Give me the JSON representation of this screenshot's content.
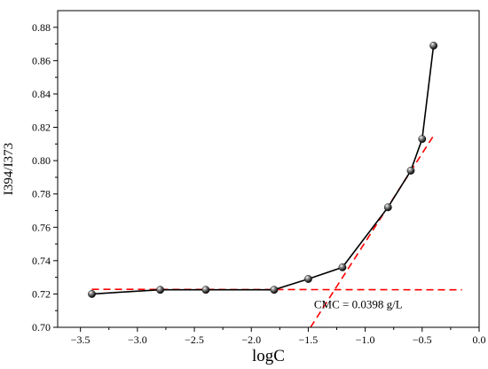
{
  "chart_data": {
    "type": "line",
    "xlabel": "logC",
    "ylabel": "I394/I373",
    "xlim": [
      -3.7,
      0.0
    ],
    "ylim": [
      0.7,
      0.89
    ],
    "xticks": [
      -3.5,
      -3.0,
      -2.5,
      -2.0,
      -1.5,
      -1.0,
      -0.5,
      0.0
    ],
    "xtick_labels": [
      "−3.5",
      "−3.0",
      "−2.5",
      "−2.0",
      "−1.5",
      "−1.0",
      "−0.5",
      "0.0"
    ],
    "yticks": [
      0.7,
      0.72,
      0.74,
      0.76,
      0.78,
      0.8,
      0.82,
      0.84,
      0.86,
      0.88
    ],
    "ytick_labels": [
      "0.70",
      "0.72",
      "0.74",
      "0.76",
      "0.78",
      "0.80",
      "0.82",
      "0.84",
      "0.86",
      "0.88"
    ],
    "grid": false,
    "series": [
      {
        "x": [
          -3.4,
          -2.8,
          -2.4,
          -1.8,
          -1.5,
          -1.2,
          -0.8,
          -0.6,
          -0.5,
          -0.4
        ],
        "y": [
          0.72,
          0.7225,
          0.7225,
          0.7225,
          0.729,
          0.736,
          0.772,
          0.794,
          0.813,
          0.869
        ],
        "color": "#000000",
        "marker": "sphere"
      }
    ],
    "fit_lines": [
      {
        "x": [
          -3.4,
          -0.15
        ],
        "y": [
          0.7228,
          0.7225
        ],
        "color": "#ff0000",
        "style": "dashed"
      },
      {
        "x": [
          -1.48,
          -0.4
        ],
        "y": [
          0.7,
          0.815
        ],
        "color": "#ff0000",
        "style": "dashed"
      }
    ],
    "annotation": {
      "text": "CMC = 0.0398 g/L",
      "x": -1.45,
      "y": 0.7135
    }
  }
}
